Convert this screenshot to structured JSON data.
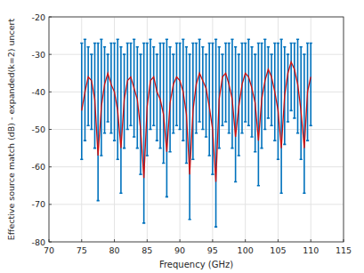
{
  "chart_data": {
    "type": "line",
    "x_label": "Frequency (GHz)",
    "y_label": "Effective source match (dB) - expanded(k=2) uncert",
    "x": [
      75,
      75.5,
      76,
      76.5,
      77,
      77.5,
      78,
      78.5,
      79,
      79.5,
      80,
      80.5,
      81,
      81.5,
      82,
      82.5,
      83,
      83.5,
      84,
      84.5,
      85,
      85.5,
      86,
      86.5,
      87,
      87.5,
      88,
      88.5,
      89,
      89.5,
      90,
      90.5,
      91,
      91.5,
      92,
      92.5,
      93,
      93.5,
      94,
      94.5,
      95,
      95.5,
      96,
      96.5,
      97,
      97.5,
      98,
      98.5,
      99,
      99.5,
      100,
      100.5,
      101,
      101.5,
      102,
      102.5,
      103,
      103.5,
      104,
      104.5,
      105,
      105.5,
      106,
      106.5,
      107,
      107.5,
      108,
      108.5,
      109,
      109.5,
      110
    ],
    "series": [
      {
        "color": "#cc1111",
        "values": [
          -45,
          -40,
          -36,
          -37,
          -42,
          -57,
          -44,
          -38,
          -35,
          -38,
          -40,
          -45,
          -55,
          -42,
          -37,
          -36,
          -39,
          -42,
          -50,
          -63,
          -44,
          -37,
          -36,
          -40,
          -42,
          -46,
          -56,
          -43,
          -38,
          -36,
          -37,
          -40,
          -46,
          -62,
          -45,
          -38,
          -35,
          -37,
          -39,
          -44,
          -50,
          -64,
          -42,
          -36,
          -35,
          -38,
          -42,
          -52,
          -44,
          -38,
          -35,
          -36,
          -39,
          -43,
          -53,
          -42,
          -37,
          -34,
          -36,
          -40,
          -45,
          -55,
          -41,
          -35,
          -32,
          -34,
          -38,
          -45,
          -55,
          -40,
          -36
        ],
        "error_plus": [
          18,
          14,
          8,
          7,
          15,
          30,
          18,
          10,
          5,
          11,
          13,
          19,
          27,
          12,
          10,
          9,
          13,
          14,
          20,
          36,
          17,
          11,
          8,
          10,
          15,
          19,
          30,
          15,
          8,
          9,
          10,
          14,
          18,
          32,
          18,
          11,
          9,
          9,
          9,
          17,
          23,
          38,
          14,
          6,
          8,
          11,
          16,
          24,
          14,
          11,
          8,
          10,
          11,
          13,
          26,
          15,
          11,
          6,
          6,
          13,
          18,
          29,
          13,
          5,
          5,
          7,
          12,
          17,
          25,
          13,
          9
        ],
        "error_minus": [
          13,
          13,
          13,
          13,
          13,
          12,
          13,
          13,
          13,
          13,
          13,
          13,
          12,
          13,
          13,
          13,
          13,
          13,
          12,
          12,
          13,
          13,
          13,
          13,
          13,
          13,
          12,
          13,
          13,
          13,
          13,
          13,
          13,
          12,
          13,
          13,
          13,
          13,
          13,
          13,
          12,
          12,
          13,
          13,
          13,
          13,
          13,
          12,
          13,
          13,
          13,
          13,
          13,
          13,
          12,
          13,
          13,
          13,
          13,
          13,
          13,
          12,
          13,
          13,
          13,
          13,
          13,
          13,
          12,
          13,
          13
        ]
      }
    ],
    "xlim": [
      70,
      115
    ],
    "xticks": [
      70,
      75,
      80,
      85,
      90,
      95,
      100,
      105,
      110,
      115
    ],
    "ylim": [
      -80,
      -20
    ],
    "yticks": [
      -80,
      -70,
      -60,
      -50,
      -40,
      -30,
      -20
    ],
    "grid": true
  }
}
